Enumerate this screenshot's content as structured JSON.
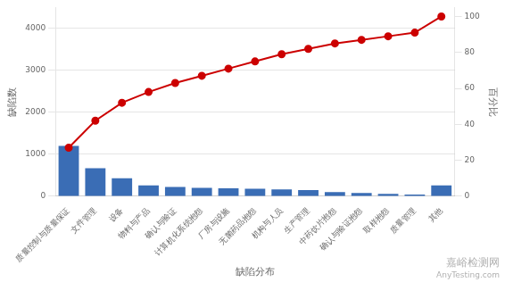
{
  "chart_data": {
    "type": "bar",
    "categories": [
      "质量控制与质量保证",
      "文件管理",
      "设备",
      "物料与产品",
      "确认与验证",
      "计算机化系统抱怨",
      "厂房与设施",
      "无菌药品抱怨",
      "机构与人员",
      "生产管理",
      "中药饮片抱怨",
      "确认与验证抱怨",
      "取样抱怨",
      "质量管理",
      "其他"
    ],
    "series": [
      {
        "type": "bar",
        "color": "#3a6db5",
        "values": [
          1200,
          670,
          430,
          260,
          220,
          200,
          190,
          180,
          165,
          145,
          100,
          75,
          55,
          40,
          260
        ]
      },
      {
        "type": "line",
        "axis": "y2",
        "color": "#cc0000",
        "marker": "circle",
        "line_style": "solid",
        "values": [
          27,
          42,
          52,
          58,
          63,
          67,
          71,
          75,
          79,
          82,
          85,
          87,
          89,
          91,
          100
        ]
      }
    ],
    "xlabel": "缺陷分布",
    "ylabel": "缺陷数",
    "y2label": "百分比",
    "ylim": [
      0,
      4500
    ],
    "yticks": [
      0,
      1000,
      2000,
      3000,
      4000
    ],
    "y2lim": [
      0,
      105
    ],
    "y2ticks": [
      0,
      20,
      40,
      60,
      80,
      100
    ],
    "grid": true,
    "annotations": [
      {
        "text": "嘉峪检测网"
      },
      {
        "text": "AnyTesting.com"
      }
    ]
  }
}
